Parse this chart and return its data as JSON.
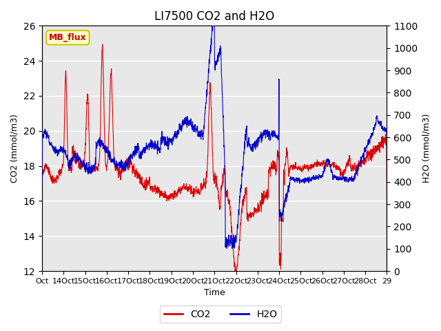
{
  "title": "LI7500 CO2 and H2O",
  "xlabel": "Time",
  "ylabel_left": "CO2 (mmol/m3)",
  "ylabel_right": "H2O (mmol/m3)",
  "ylim_left": [
    12,
    26
  ],
  "ylim_right": [
    0,
    1100
  ],
  "yticks_left": [
    12,
    14,
    16,
    18,
    20,
    22,
    24,
    26
  ],
  "yticks_right": [
    0,
    100,
    200,
    300,
    400,
    500,
    600,
    700,
    800,
    900,
    1000,
    1100
  ],
  "x_tick_labels": [
    "Oct",
    "14Oct",
    "15Oct",
    "16Oct",
    "17Oct",
    "18Oct",
    "19Oct",
    "20Oct",
    "21Oct",
    "22Oct",
    "23Oct",
    "24Oct",
    "25Oct",
    "26Oct",
    "27Oct",
    "28Oct",
    "29"
  ],
  "annotation_text": "MB_flux",
  "annotation_bg": "#ffffcc",
  "annotation_border": "#cccc00",
  "annotation_text_color": "#cc0000",
  "co2_color": "#dd0000",
  "h2o_color": "#0000cc",
  "plot_bg": "#e8e8e8",
  "grid_color": "#ffffff",
  "title_fontsize": 12
}
